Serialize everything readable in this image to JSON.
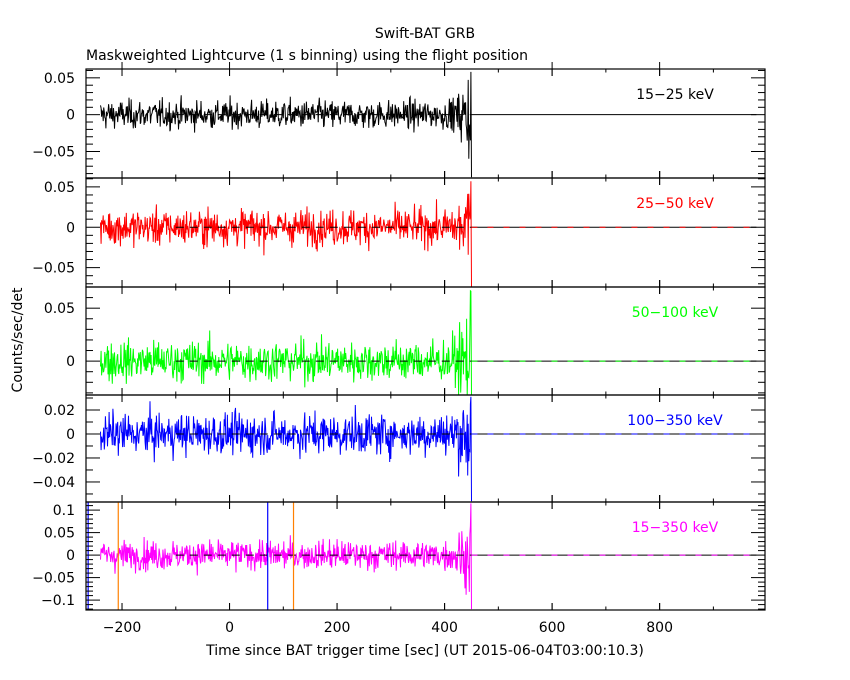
{
  "chart_data": {
    "type": "line",
    "title": "Swift-BAT GRB",
    "subtitle": "Maskweighted Lightcurve (1 s binning) using the flight position",
    "xlabel": "Time since BAT trigger time [sec] (UT 2015-06-04T03:00:10.3)",
    "ylabel": "Counts/sec/det",
    "xlim": [
      -267,
      996
    ],
    "xticks": [
      -200,
      0,
      200,
      400,
      600,
      800
    ],
    "xtick_labels": [
      "−200",
      "0",
      "200",
      "400",
      "600",
      "800"
    ],
    "xminor_step": 100,
    "grid": false,
    "data_range": {
      "t_start": -240,
      "t_end": 450,
      "bin_seconds": 1
    },
    "zero_line": {
      "dashed_black_from": -100,
      "dashed_black_to": 450,
      "colored_from": 450,
      "colored_to": 980
    },
    "series": [
      {
        "name": "15-25 keV",
        "label": "15−25 keV",
        "color": "#000000",
        "ylim": [
          -0.086,
          0.062
        ],
        "yticks": [
          0.05,
          0,
          -0.05
        ],
        "ytick_labels": [
          "0.05",
          "0",
          "−0.05"
        ],
        "yminor_step": 0.01,
        "noise_sigma": 0.0095,
        "end_burst": {
          "t_from": 400,
          "t_to": 450,
          "max": 0.058,
          "min": -0.085
        }
      },
      {
        "name": "25-50 keV",
        "label": "25−50 keV",
        "color": "#ff0000",
        "ylim": [
          -0.074,
          0.061
        ],
        "yticks": [
          0.05,
          0,
          -0.05
        ],
        "ytick_labels": [
          "0.05",
          "0",
          "−0.05"
        ],
        "yminor_step": 0.01,
        "noise_sigma": 0.011,
        "end_burst": {
          "t_from": 400,
          "t_to": 450,
          "max": 0.057,
          "min": -0.074
        }
      },
      {
        "name": "50-100 keV",
        "label": "50−100 keV",
        "color": "#00ff00",
        "ylim": [
          -0.032,
          0.07
        ],
        "yticks": [
          0.05,
          0
        ],
        "ytick_labels": [
          "0.05",
          "0"
        ],
        "yminor_step": 0.01,
        "noise_sigma": 0.0095,
        "end_burst": {
          "t_from": 400,
          "t_to": 450,
          "max": 0.066,
          "min": -0.032
        }
      },
      {
        "name": "100-350 keV",
        "label": "100−350 keV",
        "color": "#0000ff",
        "ylim": [
          -0.0567,
          0.0325
        ],
        "yticks": [
          0.02,
          0,
          -0.02,
          -0.04
        ],
        "ytick_labels": [
          "0.02",
          "0",
          "−0.02",
          "−0.04"
        ],
        "yminor_step": 0.01,
        "noise_sigma": 0.0085,
        "end_burst": {
          "t_from": 400,
          "t_to": 450,
          "max": 0.031,
          "min": -0.056
        }
      },
      {
        "name": "15-350 keV",
        "label": "15−350 keV",
        "color": "#ff00ff",
        "ylim": [
          -0.122,
          0.118
        ],
        "yticks": [
          0.1,
          0.05,
          0,
          -0.05,
          -0.1
        ],
        "ytick_labels": [
          "0.1",
          "0.05",
          "0",
          "−0.05",
          "−0.1"
        ],
        "yminor_step": 0.01,
        "noise_sigma": 0.016,
        "end_burst": {
          "t_from": 400,
          "t_to": 450,
          "max": 0.115,
          "min": -0.12
        },
        "markers": [
          {
            "t": -263,
            "color": "#0000ff"
          },
          {
            "t": -207,
            "color": "#ff8000"
          },
          {
            "t": 71,
            "color": "#0000ff"
          },
          {
            "t": 119,
            "color": "#ff8000"
          }
        ]
      }
    ]
  }
}
